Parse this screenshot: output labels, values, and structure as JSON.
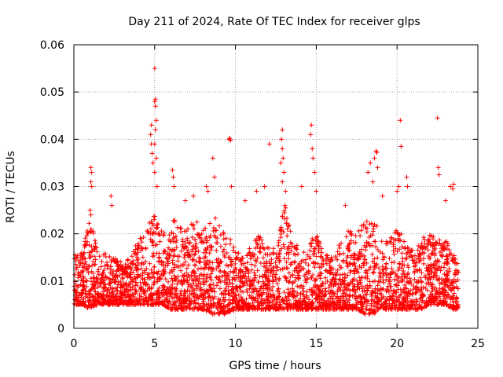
{
  "chart_data": {
    "type": "scatter",
    "title": "Day 211 of 2024, Rate Of TEC Index for receiver glps",
    "xlabel": "GPS time / hours",
    "ylabel": "ROTI / TECUs",
    "xlim": [
      0,
      25
    ],
    "ylim": [
      0,
      0.06
    ],
    "grid": true,
    "marker": "+",
    "color": "#ff0000",
    "xticks": [
      "0",
      "5",
      "10",
      "15",
      "20",
      "25"
    ],
    "yticks": [
      "0",
      "0.01",
      "0.02",
      "0.03",
      "0.04",
      "0.05",
      "0.06"
    ],
    "series": [
      {
        "name": "ROTI",
        "envelope": {
          "hours": [
            0.0,
            0.5,
            1.0,
            1.5,
            2.0,
            2.5,
            3.0,
            3.5,
            4.0,
            4.5,
            5.0,
            5.5,
            6.0,
            6.5,
            7.0,
            7.5,
            8.0,
            8.5,
            9.0,
            9.5,
            10.0,
            10.5,
            11.0,
            11.5,
            12.0,
            12.5,
            13.0,
            13.5,
            14.0,
            14.5,
            15.0,
            15.5,
            16.0,
            16.5,
            17.0,
            17.5,
            18.0,
            18.5,
            19.0,
            19.5,
            20.0,
            20.5,
            21.0,
            21.5,
            22.0,
            22.5,
            23.0,
            23.5,
            24.0
          ],
          "roti_low": [
            0.005,
            0.005,
            0.004,
            0.005,
            0.005,
            0.005,
            0.005,
            0.005,
            0.005,
            0.005,
            0.005,
            0.005,
            0.004,
            0.004,
            0.004,
            0.004,
            0.004,
            0.003,
            0.003,
            0.003,
            0.004,
            0.004,
            0.004,
            0.004,
            0.004,
            0.004,
            0.004,
            0.004,
            0.004,
            0.004,
            0.004,
            0.004,
            0.004,
            0.004,
            0.004,
            0.004,
            0.003,
            0.003,
            0.004,
            0.004,
            0.004,
            0.004,
            0.004,
            0.004,
            0.005,
            0.005,
            0.005,
            0.004,
            0.004
          ],
          "roti_high": [
            0.016,
            0.016,
            0.024,
            0.016,
            0.016,
            0.015,
            0.014,
            0.015,
            0.019,
            0.021,
            0.025,
            0.021,
            0.024,
            0.022,
            0.021,
            0.023,
            0.022,
            0.023,
            0.025,
            0.02,
            0.017,
            0.016,
            0.018,
            0.02,
            0.017,
            0.017,
            0.028,
            0.019,
            0.017,
            0.018,
            0.02,
            0.016,
            0.016,
            0.018,
            0.021,
            0.02,
            0.023,
            0.024,
            0.02,
            0.019,
            0.021,
            0.019,
            0.017,
            0.019,
            0.02,
            0.019,
            0.019,
            0.016,
            0.012
          ]
        },
        "spikes": [
          {
            "hour": 0.15,
            "roti": 0.015
          },
          {
            "hour": 1.05,
            "roti": 0.034
          },
          {
            "hour": 1.1,
            "roti": 0.033
          },
          {
            "hour": 1.05,
            "roti": 0.031
          },
          {
            "hour": 1.1,
            "roti": 0.03
          },
          {
            "hour": 1.0,
            "roti": 0.025
          },
          {
            "hour": 1.05,
            "roti": 0.024
          },
          {
            "hour": 2.3,
            "roti": 0.028
          },
          {
            "hour": 2.35,
            "roti": 0.026
          },
          {
            "hour": 4.8,
            "roti": 0.043
          },
          {
            "hour": 4.75,
            "roti": 0.041
          },
          {
            "hour": 4.8,
            "roti": 0.039
          },
          {
            "hour": 4.85,
            "roti": 0.037
          },
          {
            "hour": 4.9,
            "roti": 0.035
          },
          {
            "hour": 5.0,
            "roti": 0.055
          },
          {
            "hour": 5.05,
            "roti": 0.0485
          },
          {
            "hour": 5.0,
            "roti": 0.048
          },
          {
            "hour": 5.05,
            "roti": 0.047
          },
          {
            "hour": 5.1,
            "roti": 0.044
          },
          {
            "hour": 5.05,
            "roti": 0.042
          },
          {
            "hour": 5.0,
            "roti": 0.039
          },
          {
            "hour": 5.1,
            "roti": 0.036
          },
          {
            "hour": 5.0,
            "roti": 0.033
          },
          {
            "hour": 5.15,
            "roti": 0.03
          },
          {
            "hour": 6.1,
            "roti": 0.0335
          },
          {
            "hour": 6.15,
            "roti": 0.032
          },
          {
            "hour": 6.2,
            "roti": 0.03
          },
          {
            "hour": 6.9,
            "roti": 0.027
          },
          {
            "hour": 7.4,
            "roti": 0.028
          },
          {
            "hour": 8.6,
            "roti": 0.036
          },
          {
            "hour": 8.7,
            "roti": 0.032
          },
          {
            "hour": 8.2,
            "roti": 0.03
          },
          {
            "hour": 8.3,
            "roti": 0.029
          },
          {
            "hour": 9.6,
            "roti": 0.04
          },
          {
            "hour": 9.65,
            "roti": 0.0402
          },
          {
            "hour": 9.7,
            "roti": 0.0398
          },
          {
            "hour": 9.75,
            "roti": 0.03
          },
          {
            "hour": 10.6,
            "roti": 0.027
          },
          {
            "hour": 11.3,
            "roti": 0.029
          },
          {
            "hour": 11.8,
            "roti": 0.03
          },
          {
            "hour": 12.1,
            "roti": 0.039
          },
          {
            "hour": 12.9,
            "roti": 0.042
          },
          {
            "hour": 12.85,
            "roti": 0.04
          },
          {
            "hour": 12.9,
            "roti": 0.038
          },
          {
            "hour": 12.95,
            "roti": 0.036
          },
          {
            "hour": 12.8,
            "roti": 0.035
          },
          {
            "hour": 13.0,
            "roti": 0.033
          },
          {
            "hour": 12.9,
            "roti": 0.031
          },
          {
            "hour": 13.1,
            "roti": 0.029
          },
          {
            "hour": 14.1,
            "roti": 0.03
          },
          {
            "hour": 14.7,
            "roti": 0.043
          },
          {
            "hour": 14.65,
            "roti": 0.041
          },
          {
            "hour": 14.75,
            "roti": 0.038
          },
          {
            "hour": 14.8,
            "roti": 0.036
          },
          {
            "hour": 14.9,
            "roti": 0.033
          },
          {
            "hour": 15.0,
            "roti": 0.029
          },
          {
            "hour": 16.8,
            "roti": 0.026
          },
          {
            "hour": 18.2,
            "roti": 0.033
          },
          {
            "hour": 18.35,
            "roti": 0.035
          },
          {
            "hour": 18.5,
            "roti": 0.031
          },
          {
            "hour": 18.7,
            "roti": 0.0375
          },
          {
            "hour": 18.75,
            "roti": 0.0372
          },
          {
            "hour": 18.6,
            "roti": 0.036
          },
          {
            "hour": 18.8,
            "roti": 0.034
          },
          {
            "hour": 19.1,
            "roti": 0.028
          },
          {
            "hour": 20.2,
            "roti": 0.044
          },
          {
            "hour": 20.25,
            "roti": 0.0385
          },
          {
            "hour": 20.1,
            "roti": 0.03
          },
          {
            "hour": 20.0,
            "roti": 0.029
          },
          {
            "hour": 20.6,
            "roti": 0.032
          },
          {
            "hour": 20.65,
            "roti": 0.03
          },
          {
            "hour": 22.5,
            "roti": 0.0445
          },
          {
            "hour": 22.55,
            "roti": 0.034
          },
          {
            "hour": 22.6,
            "roti": 0.0325
          },
          {
            "hour": 23.0,
            "roti": 0.027
          },
          {
            "hour": 23.3,
            "roti": 0.03
          },
          {
            "hour": 23.5,
            "roti": 0.0305
          },
          {
            "hour": 23.45,
            "roti": 0.0295
          }
        ],
        "density": {
          "points_per_hour": 150,
          "end_hour": 23.8
        }
      }
    ]
  }
}
